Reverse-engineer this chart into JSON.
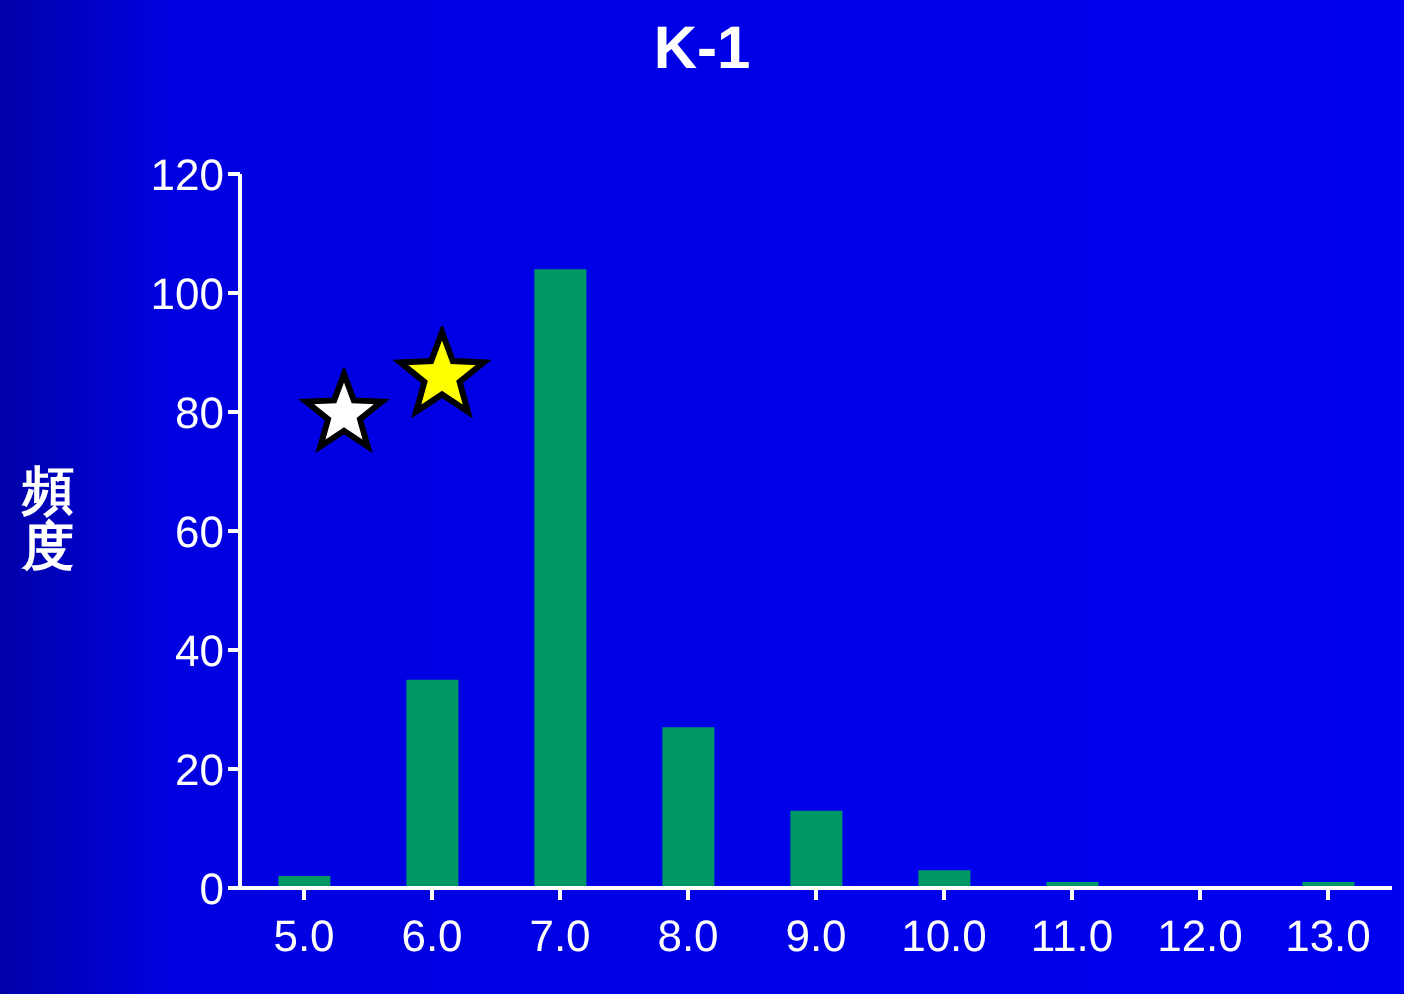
{
  "chart_data": {
    "type": "bar",
    "title": "K-1",
    "ylabel": "頻度",
    "categories": [
      "5.0",
      "6.0",
      "7.0",
      "8.0",
      "9.0",
      "10.0",
      "11.0",
      "12.0",
      "13.0"
    ],
    "values": [
      2,
      35,
      104,
      27,
      13,
      3,
      1,
      0,
      1
    ],
    "color": "#009966",
    "ylim": [
      0,
      120
    ],
    "yticks": [
      0,
      20,
      40,
      60,
      80,
      100,
      120
    ],
    "grid": false,
    "legend": false
  }
}
